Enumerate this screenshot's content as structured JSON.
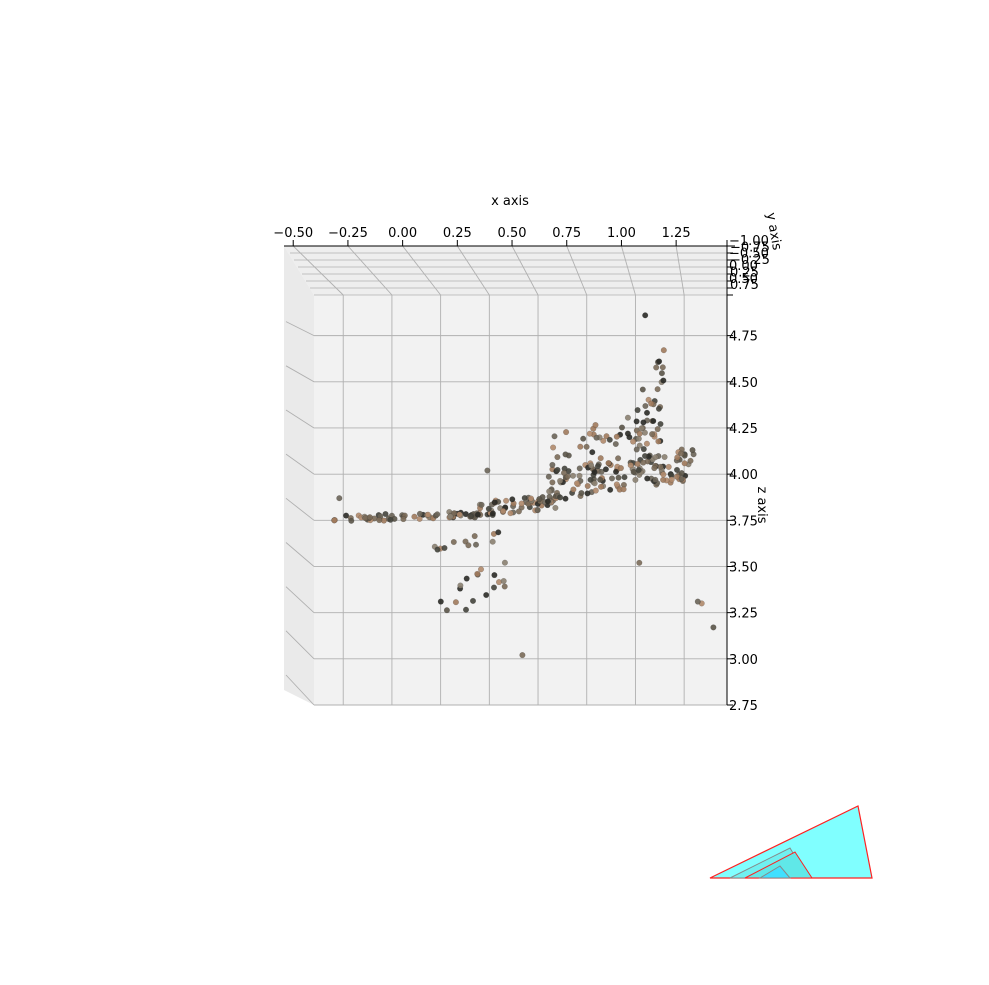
{
  "chart_data": {
    "type": "scatter",
    "projection": "3d",
    "title": "",
    "xlabel": "x axis",
    "ylabel": "y axis",
    "zlabel": "z axis",
    "xlim": [
      -0.65,
      1.47
    ],
    "zlim": [
      2.75,
      4.97
    ],
    "x_ticks": [
      "−0.50",
      "−0.25",
      "0.00",
      "0.25",
      "0.50",
      "0.75",
      "1.00",
      "1.25"
    ],
    "x_tick_values": [
      -0.5,
      -0.25,
      0.0,
      0.25,
      0.5,
      0.75,
      1.0,
      1.25
    ],
    "y_ticks": [
      "−1.00",
      "−0.75",
      "−0.50",
      "−0.25",
      "0.00",
      "0.25",
      "0.50",
      "0.75"
    ],
    "z_ticks": [
      "2.75",
      "3.00",
      "3.25",
      "3.50",
      "3.75",
      "4.00",
      "4.25",
      "4.50",
      "4.75"
    ],
    "z_tick_values": [
      2.75,
      3.0,
      3.25,
      3.5,
      3.75,
      4.0,
      4.25,
      4.5,
      4.75
    ],
    "grid": true,
    "point_colors": [
      "#2a2a26",
      "#44443c",
      "#6a6458",
      "#8a7f70",
      "#a07a5c",
      "#b08a6c",
      "#5a5448",
      "#7a6a58"
    ],
    "camera_frustum_colors": {
      "face": "#80ffff",
      "edge": "#ff2020"
    },
    "series": [
      {
        "clusters": [
          {
            "x": [
              -0.55,
              0.2
            ],
            "z": [
              3.74,
              3.8
            ],
            "n": 60
          },
          {
            "x": [
              0.15,
              0.6
            ],
            "z": [
              3.76,
              3.9
            ],
            "n": 70
          },
          {
            "x": [
              0.55,
              1.3
            ],
            "z": [
              3.85,
              4.15
            ],
            "n": 140
          },
          {
            "x": [
              1.0,
              1.15
            ],
            "z": [
              3.9,
              4.7
            ],
            "n": 45
          },
          {
            "x": [
              0.55,
              1.0
            ],
            "z": [
              4.0,
              4.35
            ],
            "n": 30
          },
          {
            "x": [
              0.0,
              0.35
            ],
            "z": [
              3.2,
              3.55
            ],
            "n": 18
          },
          {
            "x": [
              -0.05,
              0.35
            ],
            "z": [
              3.55,
              3.7
            ],
            "n": 12
          }
        ],
        "outliers": [
          {
            "x": -0.52,
            "z": 3.87
          },
          {
            "x": 0.42,
            "z": 3.02
          },
          {
            "x": 1.4,
            "z": 3.17
          },
          {
            "x": 1.34,
            "z": 3.3
          },
          {
            "x": 1.32,
            "z": 3.31
          },
          {
            "x": 1.05,
            "z": 4.86
          },
          {
            "x": 0.24,
            "z": 4.02
          },
          {
            "x": 1.02,
            "z": 3.52
          }
        ]
      }
    ]
  }
}
